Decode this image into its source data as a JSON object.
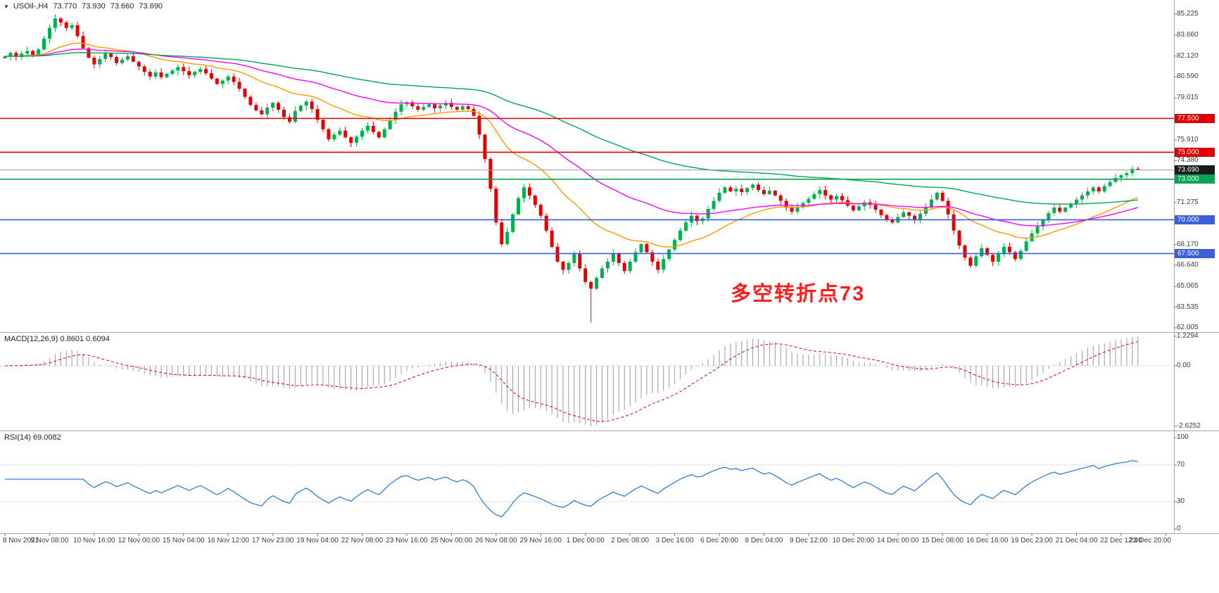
{
  "header": {
    "dropdown_icon": "▼",
    "symbol_period": "USOil-,H4",
    "ohlc": {
      "open": "73.770",
      "high": "73.930",
      "low": "73.660",
      "close": "73.690"
    }
  },
  "annotation": {
    "text": "多空转折点73",
    "color": "#ff1e1e"
  },
  "colors": {
    "bull": "#00b050",
    "bear": "#e30000",
    "ma_fast": "#ff9900",
    "ma_mid": "#ff00ff",
    "ma_slow": "#00a651",
    "grid": "#c9c9c9",
    "separator": "#a6a6a6",
    "axis_text": "#3c3c3c",
    "hline_red": "#e00000",
    "hline_green": "#00a651",
    "hline_blue": "#3a5fd9",
    "current_price_line": "#9a9a9a",
    "current_badge": "#1a1a1a",
    "macd_hist": "#9a9a9a",
    "macd_signal": "#e00000",
    "rsi_line": "#2f7fd6"
  },
  "chart_data": [
    {
      "type": "candlestick",
      "title": "USOil-,H4",
      "ylim": [
        62.005,
        85.9
      ],
      "first_open": 81.95,
      "last_candle": {
        "open": 73.77,
        "high": 73.93,
        "low": 73.66,
        "close": 73.69
      },
      "closes": [
        82.1,
        82.35,
        82.05,
        82.3,
        82.5,
        82.2,
        82.6,
        83.4,
        84.2,
        84.9,
        84.6,
        84.2,
        84.4,
        83.6,
        82.7,
        82.0,
        81.5,
        81.9,
        82.3,
        82.05,
        81.6,
        81.85,
        82.1,
        81.7,
        81.35,
        80.95,
        80.6,
        80.9,
        80.55,
        80.8,
        81.05,
        81.3,
        81.0,
        80.7,
        80.95,
        81.15,
        80.85,
        80.45,
        80.05,
        80.3,
        80.6,
        80.2,
        79.7,
        79.1,
        78.5,
        78.1,
        77.8,
        78.3,
        78.65,
        78.15,
        77.6,
        77.25,
        78.05,
        78.45,
        78.75,
        78.2,
        77.4,
        76.7,
        75.95,
        76.3,
        76.6,
        76.1,
        75.7,
        76.15,
        76.6,
        76.95,
        76.5,
        76.1,
        76.7,
        77.4,
        78.0,
        78.55,
        78.7,
        78.4,
        78.15,
        78.35,
        78.55,
        78.25,
        78.45,
        78.65,
        78.35,
        78.15,
        78.4,
        78.2,
        77.7,
        76.3,
        74.5,
        72.3,
        69.8,
        68.2,
        69.1,
        70.4,
        71.6,
        72.4,
        71.8,
        71.1,
        70.3,
        69.2,
        68.0,
        66.9,
        66.3,
        66.8,
        67.5,
        66.4,
        65.4,
        64.9,
        65.7,
        66.4,
        66.9,
        67.5,
        66.8,
        66.2,
        66.9,
        67.6,
        68.2,
        67.6,
        66.9,
        66.3,
        67.1,
        67.8,
        68.5,
        69.2,
        69.8,
        70.3,
        69.9,
        70.1,
        70.8,
        71.4,
        72.0,
        72.4,
        72.1,
        72.3,
        72.05,
        72.35,
        72.6,
        72.2,
        71.9,
        72.15,
        71.8,
        71.4,
        70.9,
        70.6,
        70.95,
        71.25,
        71.55,
        71.9,
        72.2,
        71.8,
        71.5,
        71.75,
        71.45,
        71.05,
        70.7,
        71.0,
        71.3,
        71.1,
        70.75,
        70.35,
        70.0,
        69.8,
        70.2,
        70.55,
        70.3,
        70.0,
        70.45,
        70.95,
        71.5,
        72.0,
        71.4,
        70.4,
        69.2,
        68.1,
        67.2,
        66.6,
        67.3,
        67.9,
        67.4,
        66.9,
        67.5,
        68.0,
        67.6,
        67.1,
        67.7,
        68.4,
        69.0,
        69.5,
        70.0,
        70.5,
        70.9,
        70.6,
        70.9,
        71.2,
        71.5,
        71.8,
        72.1,
        72.4,
        72.1,
        72.5,
        72.8,
        73.1,
        73.3,
        73.45,
        73.77,
        73.69
      ],
      "special_highs": {
        "9": 85.225,
        "203": 73.93
      },
      "special_lows": {
        "105": 62.4,
        "203": 73.66
      },
      "moving_averages": [
        {
          "period": 24,
          "color_key": "ma_fast"
        },
        {
          "period": 52,
          "color_key": "ma_mid"
        },
        {
          "period": 110,
          "color_key": "ma_slow"
        }
      ],
      "y_ticks": [
        "85.225",
        "83.660",
        "82.120",
        "80.590",
        "79.015",
        "75.910",
        "74.380",
        "71.275",
        "69.740",
        "68.170",
        "66.640",
        "65.065",
        "63.535",
        "62.005"
      ],
      "hlines": [
        {
          "price": 77.5,
          "label": "77.500",
          "type": "red"
        },
        {
          "price": 75.0,
          "label": "75.000",
          "type": "red"
        },
        {
          "price": 73.0,
          "label": "73.000",
          "type": "green"
        },
        {
          "price": 70.0,
          "label": "70.000",
          "type": "blue"
        },
        {
          "price": 67.5,
          "label": "67.500",
          "type": "blue"
        }
      ],
      "current": {
        "value": 73.69,
        "label": "73.690"
      },
      "time_labels": [
        "8 Nov 2021",
        "9 Nov 08:00",
        "10 Nov 16:00",
        "12 Nov 00:00",
        "15 Nov 04:00",
        "16 Nov 12:00",
        "17 Nov 23:00",
        "19 Nov 04:00",
        "22 Nov 08:00",
        "23 Nov 16:00",
        "25 Nov 00:00",
        "26 Nov 08:00",
        "29 Nov 16:00",
        "1 Dec 00:00",
        "2 Dec 08:00",
        "3 Dec 16:00",
        "6 Dec 20:00",
        "8 Dec 04:00",
        "9 Dec 12:00",
        "10 Dec 20:00",
        "14 Dec 00:00",
        "15 Dec 08:00",
        "16 Dec 16:00",
        "19 Dec 23:00",
        "21 Dec 04:00",
        "22 Dec 12:00",
        "23 Dec 20:00"
      ]
    },
    {
      "type": "bar",
      "name": "MACD",
      "label": "MACD(12,26,9) 0.8601 0.6094",
      "params": [
        12,
        26,
        9
      ],
      "current": {
        "macd": 0.8601,
        "signal": 0.6094
      },
      "ylim": [
        -2.6252,
        1.2294
      ],
      "ticks": [
        {
          "v": 1.2294,
          "label": "1.2294"
        },
        {
          "v": 0,
          "label": "0.00"
        },
        {
          "v": -2.6252,
          "label": "-2.6252"
        }
      ],
      "derived": "histogram = EMA12(close) - EMA26(close); signal = EMA9(histogram)"
    },
    {
      "type": "line",
      "name": "RSI",
      "label": "RSI(14) 69.0082",
      "period": 14,
      "current": 69.0082,
      "ylim": [
        0,
        100
      ],
      "levels": [
        70,
        30
      ],
      "ticks": [
        {
          "v": 100,
          "label": "100"
        },
        {
          "v": 70,
          "label": "70"
        },
        {
          "v": 30,
          "label": "30"
        },
        {
          "v": 0,
          "label": "0"
        }
      ]
    }
  ]
}
